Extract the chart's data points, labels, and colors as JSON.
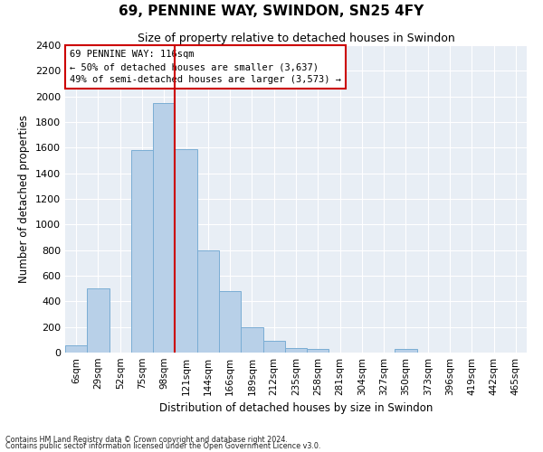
{
  "title": "69, PENNINE WAY, SWINDON, SN25 4FY",
  "subtitle": "Size of property relative to detached houses in Swindon",
  "xlabel": "Distribution of detached houses by size in Swindon",
  "ylabel": "Number of detached properties",
  "categories": [
    "6sqm",
    "29sqm",
    "52sqm",
    "75sqm",
    "98sqm",
    "121sqm",
    "144sqm",
    "166sqm",
    "189sqm",
    "212sqm",
    "235sqm",
    "258sqm",
    "281sqm",
    "304sqm",
    "327sqm",
    "350sqm",
    "373sqm",
    "396sqm",
    "419sqm",
    "442sqm",
    "465sqm"
  ],
  "values": [
    60,
    500,
    0,
    1580,
    1950,
    1590,
    800,
    480,
    200,
    90,
    35,
    30,
    0,
    0,
    0,
    25,
    0,
    0,
    0,
    0,
    0
  ],
  "bar_color": "#b8d0e8",
  "bar_edge_color": "#7aadd4",
  "ylim": [
    0,
    2400
  ],
  "yticks": [
    0,
    200,
    400,
    600,
    800,
    1000,
    1200,
    1400,
    1600,
    1800,
    2000,
    2200,
    2400
  ],
  "vline_x_index": 4.5,
  "vline_color": "#cc0000",
  "annotation_line1": "69 PENNINE WAY: 116sqm",
  "annotation_line2": "← 50% of detached houses are smaller (3,637)",
  "annotation_line3": "49% of semi-detached houses are larger (3,573) →",
  "annotation_box_color": "#cc0000",
  "footnote1": "Contains HM Land Registry data © Crown copyright and database right 2024.",
  "footnote2": "Contains public sector information licensed under the Open Government Licence v3.0.",
  "background_color": "#ffffff",
  "plot_bg_color": "#e8eef5",
  "grid_color": "#ffffff"
}
